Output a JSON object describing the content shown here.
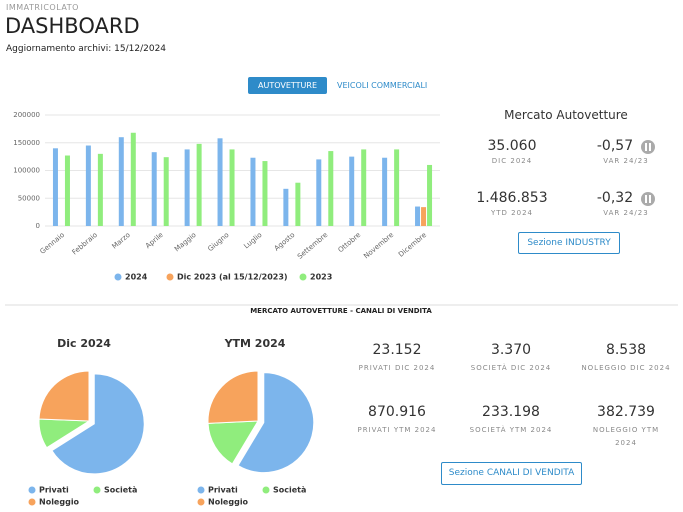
{
  "header": {
    "section": "IMMATRICOLATO",
    "title": "DASHBOARD",
    "update": "Aggiornamento archivi: 15/12/2024"
  },
  "tabs": [
    {
      "label": "AUTOVETTURE",
      "active": true
    },
    {
      "label": "VEICOLI COMMERCIALI",
      "active": false
    }
  ],
  "chart_data": [
    {
      "type": "bar",
      "categories": [
        "Gennaio",
        "Febbraio",
        "Marzo",
        "Aprile",
        "Maggio",
        "Giugno",
        "Luglio",
        "Agosto",
        "Settembre",
        "Ottobre",
        "Novembre",
        "Dicembre"
      ],
      "series": [
        {
          "name": "2024",
          "color": "#7cb5ec",
          "values": [
            140000,
            145000,
            160000,
            133000,
            138000,
            158000,
            123000,
            67000,
            120000,
            125000,
            123000,
            35060
          ]
        },
        {
          "name": "Dic 2023 (al 15/12/2023)",
          "color": "#f7a35c",
          "values": [
            null,
            null,
            null,
            null,
            null,
            null,
            null,
            null,
            null,
            null,
            null,
            34000
          ]
        },
        {
          "name": "2023",
          "color": "#90ed7d",
          "values": [
            127000,
            130000,
            168000,
            124000,
            148000,
            138000,
            117000,
            78000,
            135000,
            138000,
            138000,
            110000
          ]
        }
      ],
      "ylim": [
        0,
        200000
      ],
      "yticks": [
        0,
        50000,
        100000,
        150000,
        200000
      ],
      "grid": true
    },
    {
      "type": "pie",
      "title": "Dic 2024",
      "categories": [
        "Privati",
        "Società",
        "Noleggio"
      ],
      "values": [
        23152,
        3370,
        8538
      ],
      "colors": [
        "#7cb5ec",
        "#90ed7d",
        "#f7a35c"
      ]
    },
    {
      "type": "pie",
      "title": "YTM 2024",
      "categories": [
        "Privati",
        "Società",
        "Noleggio"
      ],
      "values": [
        870916,
        233198,
        382739
      ],
      "colors": [
        "#7cb5ec",
        "#90ed7d",
        "#f7a35c"
      ]
    }
  ],
  "industry": {
    "title": "Mercato Autovetture",
    "kpis": [
      {
        "value": "35.060",
        "label": "DIC 2024"
      },
      {
        "value": "-0,57",
        "label": "VAR 24/23"
      },
      {
        "value": "1.486.853",
        "label": "YTD 2024"
      },
      {
        "value": "-0,32",
        "label": "VAR 24/23"
      }
    ],
    "button": "Sezione INDUSTRY"
  },
  "channels": {
    "title": "MERCATO AUTOVETTURE - CANALI DI VENDITA",
    "kpis": [
      {
        "value": "23.152",
        "label": "PRIVATI DIC 2024"
      },
      {
        "value": "3.370",
        "label": "SOCIETÀ DIC 2024"
      },
      {
        "value": "8.538",
        "label": "NOLEGGIO DIC 2024"
      },
      {
        "value": "870.916",
        "label": "PRIVATI YTM 2024"
      },
      {
        "value": "233.198",
        "label": "SOCIETÀ YTM 2024"
      },
      {
        "value": "382.739",
        "label": "NOLEGGIO YTM 2024"
      }
    ],
    "button": "Sezione CANALI DI VENDITA"
  }
}
